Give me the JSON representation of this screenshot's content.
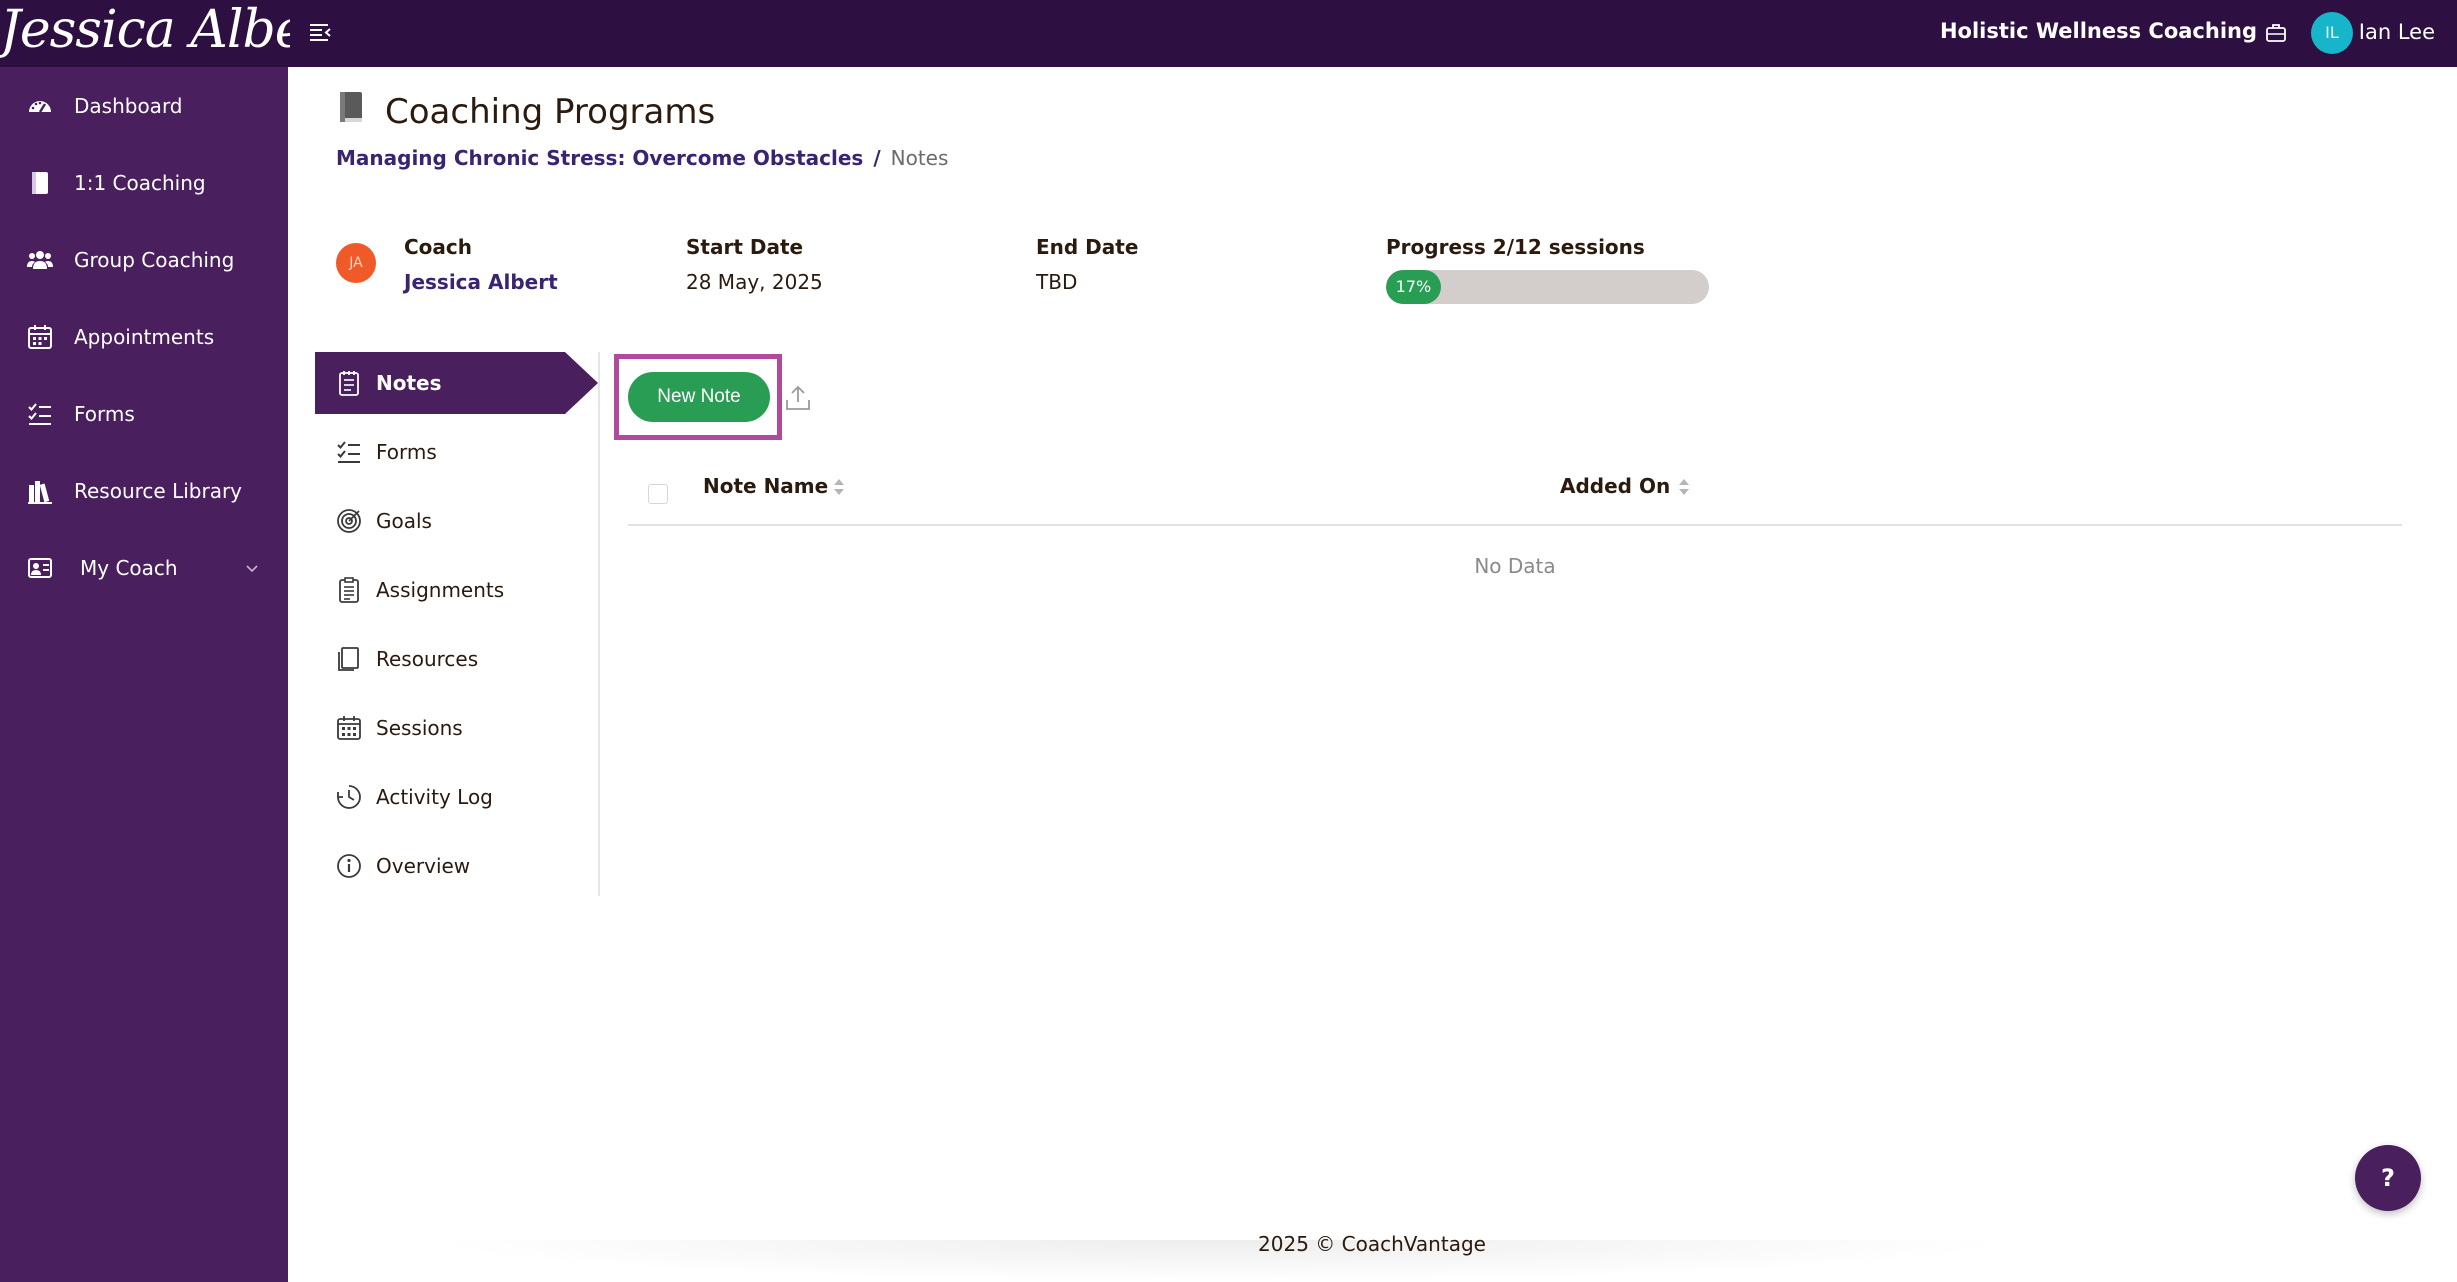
{
  "topbar": {
    "logo_text": "Jessica Albert",
    "org_name": "Holistic Wellness Coaching",
    "user_initials": "IL",
    "user_name": "Ian Lee"
  },
  "sidebar": {
    "items": [
      {
        "label": "Dashboard",
        "icon": "dashboard-icon"
      },
      {
        "label": "1:1 Coaching",
        "icon": "book-icon"
      },
      {
        "label": "Group Coaching",
        "icon": "users-icon"
      },
      {
        "label": "Appointments",
        "icon": "calendar-icon"
      },
      {
        "label": "Forms",
        "icon": "checklist-icon"
      },
      {
        "label": "Resource Library",
        "icon": "library-icon"
      },
      {
        "label": "My Coach",
        "icon": "coach-card-icon"
      }
    ]
  },
  "page": {
    "title": "Coaching Programs",
    "breadcrumb": {
      "program": "Managing Chronic Stress: Overcome Obstacles",
      "separator": "/",
      "current": "Notes"
    }
  },
  "info": {
    "coach_initials": "JA",
    "coach_label": "Coach",
    "coach_name": "Jessica Albert",
    "start_label": "Start Date",
    "start_value": "28 May, 2025",
    "end_label": "End Date",
    "end_value": "TBD",
    "progress_label": "Progress 2/12 sessions",
    "progress_text": "17%",
    "progress_fraction": 0.17
  },
  "subnav": {
    "items": [
      {
        "label": "Notes",
        "icon": "notes-icon",
        "active": true
      },
      {
        "label": "Forms",
        "icon": "checklist-icon"
      },
      {
        "label": "Goals",
        "icon": "target-icon"
      },
      {
        "label": "Assignments",
        "icon": "clipboard-icon"
      },
      {
        "label": "Resources",
        "icon": "document-icon"
      },
      {
        "label": "Sessions",
        "icon": "calendar-icon"
      },
      {
        "label": "Activity Log",
        "icon": "clock-icon"
      },
      {
        "label": "Overview",
        "icon": "info-icon"
      }
    ]
  },
  "notes": {
    "new_button": "New Note",
    "columns": [
      "Note Name",
      "Added On"
    ],
    "empty_text": "No Data"
  },
  "footer": {
    "text": "2025 © CoachVantage"
  },
  "help": {
    "label": "?"
  },
  "colors": {
    "topbar": "#2d0f42",
    "sidebar": "#4a1f5e",
    "accent_green": "#2a9d55",
    "highlight": "#b04a9a"
  }
}
